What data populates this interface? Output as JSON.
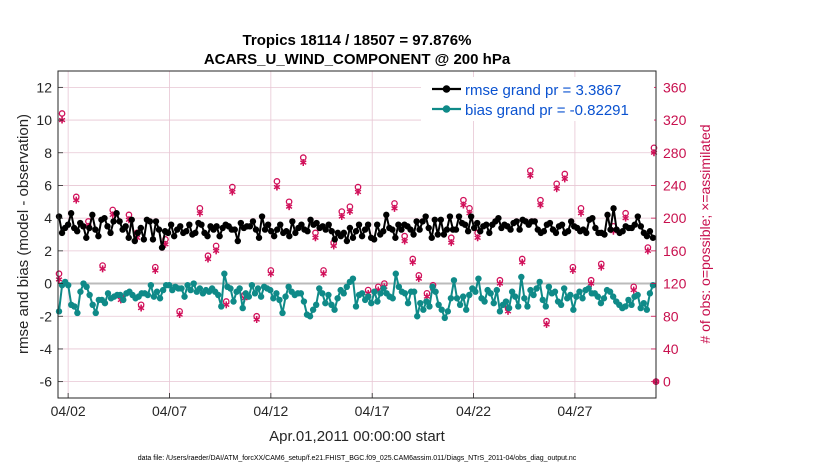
{
  "chart_data": {
    "type": "line",
    "title_line1": "Tropics 18114 / 18507 = 97.876%",
    "title_line2": "ACARS_U_WIND_COMPONENT @ 200 hPa",
    "xlabel": "Apr.01,2011 00:00:00 start",
    "ylabel": "rmse and bias (model - observation)",
    "ylabel_right": "# of obs: o=possible; ×=assimilated",
    "x_tick_labels": [
      "04/02",
      "04/07",
      "04/12",
      "04/17",
      "04/22",
      "04/27"
    ],
    "x_tick_days": [
      2,
      7,
      12,
      17,
      22,
      27
    ],
    "xlim": [
      1.5,
      31.0
    ],
    "ylim": [
      -7,
      13
    ],
    "y_ticks": [
      -6,
      -4,
      -2,
      0,
      2,
      4,
      6,
      8,
      10,
      12
    ],
    "y2lim": [
      -20,
      380
    ],
    "y2_ticks": [
      0,
      40,
      80,
      120,
      160,
      200,
      240,
      280,
      320,
      360
    ],
    "grid": true,
    "legend_position": "top-right",
    "colors": {
      "rmse": "#000000",
      "bias": "#0f8a88",
      "obs": "#d1105a",
      "zero": "#bbbbbb",
      "legend_text": "#0a52d0",
      "right_axis": "#c8104e"
    },
    "series": [
      {
        "name": "rmse grand pr = 3.3867",
        "color": "#000000",
        "values": [
          4.1,
          3.1,
          3.4,
          3.6,
          4.3,
          3.4,
          3.2,
          3.7,
          3.5,
          2.8,
          3.4,
          4.2,
          3.3,
          2.9,
          3.9,
          4.0,
          3.5,
          3.1,
          3.8,
          4.3,
          3.8,
          3.3,
          3.5,
          2.8,
          3.9,
          2.6,
          3.1,
          3.4,
          2.7,
          3.9,
          3.8,
          2.7,
          3.8,
          3.3,
          2.2,
          3.2,
          3.1,
          3.6,
          2.9,
          3.3,
          3.5,
          3.1,
          3.2,
          3.6,
          3.0,
          3.1,
          3.7,
          3.6,
          3.1,
          2.9,
          3.5,
          3.3,
          3.5,
          2.9,
          3.4,
          3.6,
          3.5,
          3.3,
          3.3,
          2.6,
          3.7,
          3.4,
          3.5,
          3.5,
          3.8,
          3.3,
          2.8,
          4.1,
          3.3,
          3.6,
          3.2,
          2.9,
          3.3,
          3.6,
          3.1,
          3.2,
          2.9,
          3.8,
          3.1,
          3.4,
          3.6,
          3.3,
          3.2,
          3.9,
          3.6,
          3.7,
          3.4,
          3.5,
          3.3,
          3.6,
          3.2,
          2.7,
          3.1,
          2.9,
          3.1,
          2.6,
          3.4,
          2.8,
          3.2,
          3.6,
          2.9,
          3.3,
          3.6,
          2.8,
          2.7,
          3.6,
          3.0,
          3.2,
          4.2,
          3.4,
          3.3,
          2.8,
          3.6,
          3.3,
          3.6,
          3.5,
          3.3,
          3.0,
          3.8,
          3.3,
          3.8,
          4.1,
          3.4,
          2.8,
          3.9,
          3.0,
          3.9,
          3.0,
          3.3,
          4.1,
          3.3,
          3.3,
          4.1,
          3.7,
          3.6,
          3.2,
          4.1,
          3.4,
          3.7,
          3.2,
          3.5,
          3.6,
          3.1,
          3.6,
          3.8,
          4.0,
          3.4,
          3.6,
          3.5,
          3.3,
          3.7,
          3.8,
          3.3,
          3.9,
          3.8,
          3.6,
          3.8,
          3.8,
          3.3,
          3.1,
          3.2,
          3.6,
          3.7,
          3.3,
          3.1,
          3.5,
          3.6,
          3.1,
          3.2,
          3.8,
          3.5,
          3.4,
          3.2,
          3.3,
          3.1,
          3.9,
          4.0,
          3.4,
          3.1,
          3.1,
          3.0,
          4.2,
          3.3,
          4.6,
          3.3,
          3.1,
          3.2,
          3.5,
          3.4,
          3.4,
          3.6,
          4.1,
          3.5,
          3.1,
          2.9,
          3.2,
          2.8
        ]
      },
      {
        "name": "bias grand pr = -0.82291",
        "color": "#0f8a88",
        "values": [
          -1.7,
          -0.1,
          0.1,
          -0.1,
          -1.3,
          -1.4,
          -1.8,
          -0.5,
          0.0,
          -0.2,
          -0.7,
          -1.3,
          -1.8,
          -1.0,
          -1.0,
          -1.2,
          -0.6,
          -0.9,
          -0.8,
          -0.7,
          -0.7,
          -1.0,
          -0.6,
          -0.5,
          -0.7,
          -0.9,
          -0.8,
          -0.6,
          -0.6,
          -0.7,
          -0.1,
          -0.8,
          -0.5,
          -0.9,
          -0.4,
          -0.1,
          -0.1,
          -0.4,
          -0.2,
          -0.3,
          -0.3,
          -0.8,
          -0.1,
          -0.4,
          0.0,
          -0.5,
          -0.3,
          -0.6,
          -0.4,
          -0.5,
          -0.3,
          -0.5,
          -0.7,
          -1.4,
          0.6,
          -0.2,
          -0.3,
          -1.1,
          -0.5,
          -0.3,
          -1.5,
          -0.6,
          -0.8,
          -0.1,
          -0.6,
          -0.3,
          -0.8,
          -0.2,
          -0.3,
          -0.4,
          -0.9,
          -0.6,
          -1.0,
          -1.8,
          -0.8,
          -0.2,
          -0.5,
          -0.7,
          -0.6,
          -0.6,
          -1.1,
          -1.9,
          -2.0,
          -1.6,
          -1.3,
          -0.3,
          -0.6,
          -1.2,
          -0.7,
          -1.3,
          -1.6,
          -0.9,
          -0.4,
          -0.6,
          -0.2,
          0.1,
          0.3,
          -1.4,
          -0.7,
          -0.6,
          -1.0,
          -0.8,
          -1.2,
          -0.5,
          -1.1,
          -0.6,
          -0.3,
          -0.6,
          -0.8,
          -0.9,
          0.6,
          -0.2,
          -0.5,
          -0.6,
          -1.2,
          -0.5,
          -0.5,
          -2.0,
          -1.2,
          -1.6,
          -1.1,
          -1.4,
          -0.2,
          -0.5,
          -1.3,
          -1.6,
          -2.1,
          -1.7,
          -0.9,
          0.2,
          -0.9,
          -1.3,
          -0.8,
          -1.6,
          -0.7,
          -0.3,
          -0.5,
          0.3,
          -0.9,
          -1.1,
          -0.4,
          -0.6,
          -1.2,
          -0.4,
          -1.7,
          -1.3,
          -1.1,
          -1.5,
          -0.5,
          -0.8,
          -1.4,
          0.4,
          -0.9,
          -1.4,
          -0.4,
          -0.7,
          -0.3,
          0.1,
          -1.0,
          -1.4,
          -0.2,
          -0.6,
          -0.5,
          -1.1,
          -1.3,
          -0.3,
          -0.9,
          -0.7,
          -1.6,
          -0.8,
          -0.5,
          -0.9,
          -0.4,
          -0.3,
          -0.6,
          -0.6,
          -0.8,
          -1.2,
          -0.9,
          -0.4,
          -0.5,
          -0.8,
          -1.1,
          -1.3,
          -1.5,
          -1.4,
          -1.0,
          -1.3,
          -0.8,
          -0.7,
          -1.5,
          -1.2,
          -1.6,
          -0.6,
          -0.1
        ]
      }
    ],
    "obs_series": [
      {
        "name": "possible",
        "marker": "circle",
        "points": [
          [
            1.55,
            132
          ],
          [
            1.7,
            328
          ],
          [
            2.4,
            226
          ],
          [
            3.0,
            196
          ],
          [
            3.7,
            142
          ],
          [
            4.2,
            210
          ],
          [
            4.6,
            104
          ],
          [
            5.0,
            204
          ],
          [
            5.4,
            182
          ],
          [
            5.6,
            94
          ],
          [
            6.3,
            140
          ],
          [
            6.8,
            174
          ],
          [
            7.5,
            86
          ],
          [
            8.5,
            212
          ],
          [
            8.9,
            154
          ],
          [
            9.3,
            166
          ],
          [
            9.8,
            98
          ],
          [
            10.1,
            238
          ],
          [
            10.7,
            106
          ],
          [
            11.3,
            80
          ],
          [
            12.0,
            136
          ],
          [
            12.3,
            245
          ],
          [
            12.9,
            220
          ],
          [
            13.6,
            274
          ],
          [
            14.2,
            182
          ],
          [
            14.6,
            136
          ],
          [
            15.1,
            170
          ],
          [
            15.5,
            208
          ],
          [
            15.9,
            214
          ],
          [
            16.3,
            238
          ],
          [
            16.8,
            112
          ],
          [
            17.3,
            116
          ],
          [
            17.6,
            120
          ],
          [
            18.1,
            218
          ],
          [
            18.6,
            178
          ],
          [
            19.0,
            150
          ],
          [
            19.3,
            130
          ],
          [
            19.7,
            108
          ],
          [
            20.0,
            118
          ],
          [
            20.9,
            176
          ],
          [
            21.5,
            222
          ],
          [
            21.8,
            212
          ],
          [
            22.2,
            182
          ],
          [
            23.3,
            124
          ],
          [
            23.7,
            90
          ],
          [
            24.4,
            150
          ],
          [
            24.8,
            258
          ],
          [
            25.3,
            222
          ],
          [
            25.6,
            74
          ],
          [
            26.1,
            242
          ],
          [
            26.5,
            254
          ],
          [
            26.9,
            140
          ],
          [
            27.3,
            212
          ],
          [
            27.8,
            124
          ],
          [
            28.3,
            144
          ],
          [
            28.9,
            190
          ],
          [
            29.5,
            206
          ],
          [
            29.9,
            116
          ],
          [
            30.6,
            164
          ],
          [
            30.9,
            286
          ],
          [
            31.0,
            0
          ]
        ]
      },
      {
        "name": "assimilated",
        "marker": "asterisk",
        "points": [
          [
            1.55,
            125
          ],
          [
            1.7,
            320
          ],
          [
            2.4,
            222
          ],
          [
            3.0,
            190
          ],
          [
            3.7,
            138
          ],
          [
            4.2,
            204
          ],
          [
            4.6,
            100
          ],
          [
            5.0,
            198
          ],
          [
            5.4,
            176
          ],
          [
            5.6,
            90
          ],
          [
            6.3,
            136
          ],
          [
            6.8,
            168
          ],
          [
            7.5,
            82
          ],
          [
            8.5,
            206
          ],
          [
            8.9,
            150
          ],
          [
            9.3,
            160
          ],
          [
            9.8,
            94
          ],
          [
            10.1,
            232
          ],
          [
            10.7,
            102
          ],
          [
            11.3,
            76
          ],
          [
            12.0,
            132
          ],
          [
            12.3,
            238
          ],
          [
            12.9,
            214
          ],
          [
            13.6,
            268
          ],
          [
            14.2,
            176
          ],
          [
            14.6,
            132
          ],
          [
            15.1,
            166
          ],
          [
            15.5,
            202
          ],
          [
            15.9,
            208
          ],
          [
            16.3,
            232
          ],
          [
            16.8,
            108
          ],
          [
            17.3,
            112
          ],
          [
            17.6,
            116
          ],
          [
            18.1,
            212
          ],
          [
            18.6,
            172
          ],
          [
            19.0,
            146
          ],
          [
            19.3,
            126
          ],
          [
            19.7,
            104
          ],
          [
            20.0,
            114
          ],
          [
            20.9,
            170
          ],
          [
            21.5,
            216
          ],
          [
            21.8,
            206
          ],
          [
            22.2,
            176
          ],
          [
            23.3,
            120
          ],
          [
            23.7,
            86
          ],
          [
            24.4,
            146
          ],
          [
            24.8,
            252
          ],
          [
            25.3,
            216
          ],
          [
            25.6,
            70
          ],
          [
            26.1,
            236
          ],
          [
            26.5,
            248
          ],
          [
            26.9,
            136
          ],
          [
            27.3,
            206
          ],
          [
            27.8,
            120
          ],
          [
            28.3,
            140
          ],
          [
            28.9,
            184
          ],
          [
            29.5,
            200
          ],
          [
            29.9,
            112
          ],
          [
            30.6,
            160
          ],
          [
            30.9,
            280
          ],
          [
            31.0,
            0
          ]
        ]
      }
    ]
  },
  "footer": {
    "data_file": "data file: /Users/raeder/DAI/ATM_forcXX/CAM6_setup/f.e21.FHIST_BGC.f09_025.CAM6assim.011/Diags_NTrS_2011-04/obs_diag_output.nc"
  }
}
